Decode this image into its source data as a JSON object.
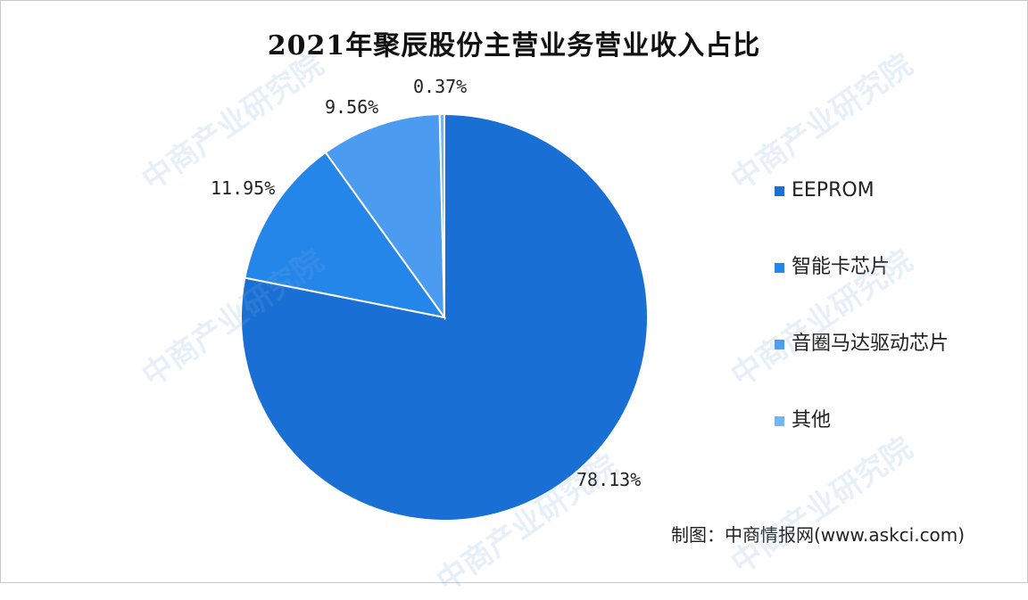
{
  "chart_data": {
    "type": "pie",
    "title": "2021年聚辰股份主营业务营业收入占比",
    "categories": [
      "EEPROM",
      "智能卡芯片",
      "音圈马达驱动芯片",
      "其他"
    ],
    "values": [
      78.13,
      11.95,
      9.56,
      0.37
    ],
    "value_labels": [
      "78.13%",
      "11.95%",
      "9.56%",
      "0.37%"
    ],
    "colors": [
      "#1a6fd4",
      "#2586ea",
      "#4b9cf0",
      "#73b5f5"
    ],
    "legend_position": "right",
    "start_angle_deg": 0,
    "direction": "clockwise"
  },
  "source": "制图：中商情报网(www.askci.com)",
  "watermark": "中商产业研究院"
}
